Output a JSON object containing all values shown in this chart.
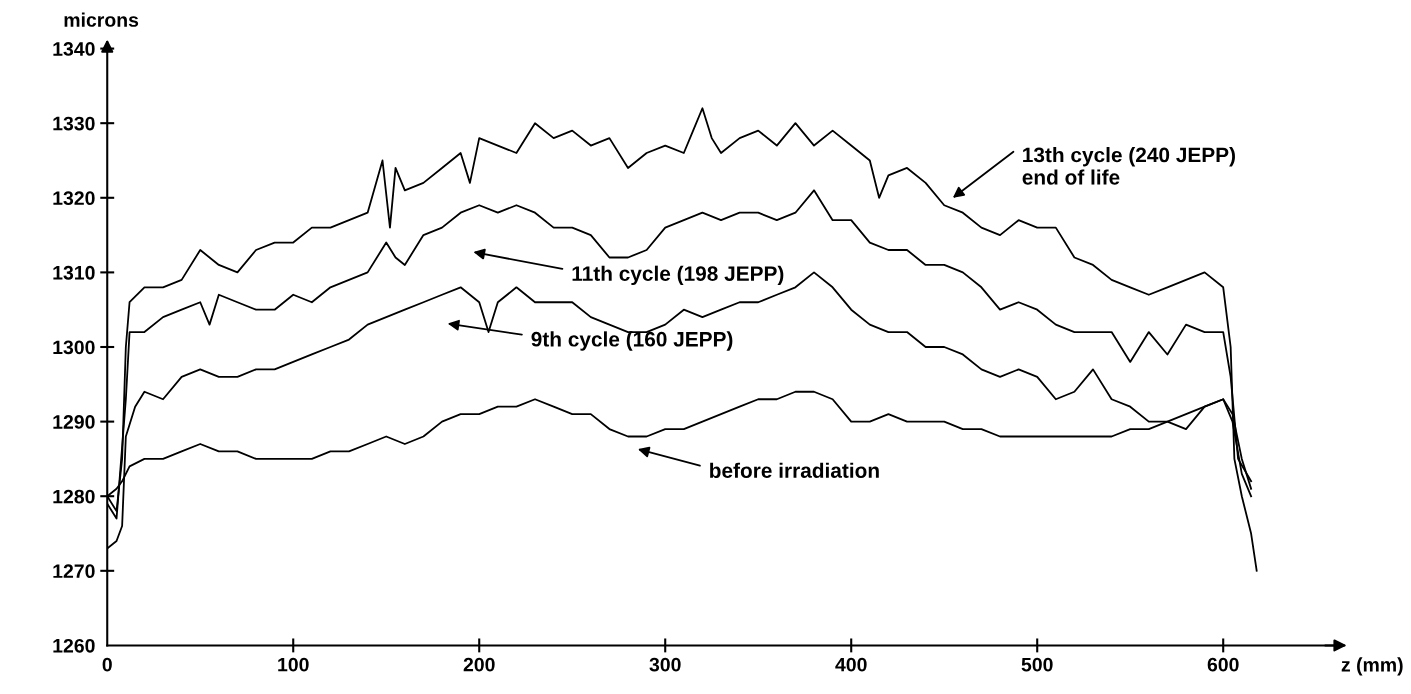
{
  "chart_data": {
    "type": "line",
    "xlabel": "z (mm)",
    "ylabel": "microns",
    "xlim": [
      0,
      660
    ],
    "ylim": [
      1260,
      1340
    ],
    "xticks": [
      0,
      100,
      200,
      300,
      400,
      500,
      600
    ],
    "yticks": [
      1260,
      1270,
      1280,
      1290,
      1300,
      1310,
      1320,
      1330,
      1340
    ],
    "grid": false,
    "legend": false,
    "marker": "none",
    "line_style": "solid",
    "series": [
      {
        "color": "#000000",
        "x": [
          0,
          5,
          8,
          10,
          12,
          20,
          30,
          40,
          50,
          60,
          70,
          80,
          90,
          100,
          110,
          120,
          130,
          140,
          148,
          152,
          155,
          160,
          170,
          180,
          190,
          195,
          200,
          210,
          220,
          230,
          240,
          250,
          260,
          270,
          280,
          290,
          300,
          310,
          315,
          320,
          325,
          330,
          340,
          350,
          360,
          370,
          380,
          390,
          400,
          410,
          415,
          420,
          430,
          440,
          450,
          460,
          470,
          480,
          490,
          500,
          510,
          520,
          530,
          540,
          550,
          560,
          570,
          580,
          590,
          600,
          604,
          606,
          610,
          615,
          618
        ],
        "values": [
          1280,
          1278,
          1285,
          1300,
          1306,
          1308,
          1308,
          1309,
          1313,
          1311,
          1310,
          1313,
          1314,
          1314,
          1316,
          1316,
          1317,
          1318,
          1325,
          1316,
          1324,
          1321,
          1322,
          1324,
          1326,
          1322,
          1328,
          1327,
          1326,
          1330,
          1328,
          1329,
          1327,
          1328,
          1324,
          1326,
          1327,
          1326,
          1329,
          1332,
          1328,
          1326,
          1328,
          1329,
          1327,
          1330,
          1327,
          1329,
          1327,
          1325,
          1320,
          1323,
          1324,
          1322,
          1319,
          1318,
          1316,
          1315,
          1317,
          1316,
          1316,
          1312,
          1311,
          1309,
          1308,
          1307,
          1308,
          1309,
          1310,
          1308,
          1300,
          1285,
          1280,
          1275,
          1270
        ]
      },
      {
        "color": "#000000",
        "x": [
          0,
          5,
          10,
          12,
          20,
          30,
          40,
          50,
          55,
          60,
          70,
          80,
          90,
          100,
          110,
          120,
          130,
          140,
          150,
          155,
          160,
          170,
          180,
          190,
          200,
          210,
          220,
          230,
          240,
          250,
          260,
          270,
          280,
          290,
          300,
          310,
          320,
          330,
          340,
          350,
          360,
          370,
          380,
          390,
          400,
          410,
          420,
          430,
          440,
          450,
          460,
          470,
          480,
          490,
          500,
          510,
          520,
          530,
          540,
          550,
          560,
          570,
          580,
          590,
          600,
          604,
          608,
          615
        ],
        "values": [
          1279,
          1277,
          1293,
          1302,
          1302,
          1304,
          1305,
          1306,
          1303,
          1307,
          1306,
          1305,
          1305,
          1307,
          1306,
          1308,
          1309,
          1310,
          1314,
          1312,
          1311,
          1315,
          1316,
          1318,
          1319,
          1318,
          1319,
          1318,
          1316,
          1316,
          1315,
          1312,
          1312,
          1313,
          1316,
          1317,
          1318,
          1317,
          1318,
          1318,
          1317,
          1318,
          1321,
          1317,
          1317,
          1314,
          1313,
          1313,
          1311,
          1311,
          1310,
          1308,
          1305,
          1306,
          1305,
          1303,
          1302,
          1302,
          1302,
          1298,
          1302,
          1299,
          1303,
          1302,
          1302,
          1296,
          1285,
          1282
        ]
      },
      {
        "color": "#000000",
        "x": [
          0,
          5,
          8,
          10,
          15,
          20,
          30,
          40,
          50,
          60,
          70,
          80,
          90,
          100,
          110,
          120,
          130,
          140,
          150,
          160,
          170,
          180,
          190,
          200,
          205,
          210,
          220,
          230,
          240,
          250,
          260,
          270,
          280,
          290,
          300,
          310,
          320,
          330,
          340,
          350,
          360,
          370,
          380,
          390,
          400,
          410,
          420,
          430,
          440,
          450,
          460,
          470,
          480,
          490,
          500,
          510,
          520,
          530,
          540,
          550,
          560,
          570,
          580,
          590,
          600,
          605,
          610,
          615
        ],
        "values": [
          1273,
          1274,
          1276,
          1288,
          1292,
          1294,
          1293,
          1296,
          1297,
          1296,
          1296,
          1297,
          1297,
          1298,
          1299,
          1300,
          1301,
          1303,
          1304,
          1305,
          1306,
          1307,
          1308,
          1306,
          1302,
          1306,
          1308,
          1306,
          1306,
          1306,
          1304,
          1303,
          1302,
          1302,
          1303,
          1305,
          1304,
          1305,
          1306,
          1306,
          1307,
          1308,
          1310,
          1308,
          1305,
          1303,
          1302,
          1302,
          1300,
          1300,
          1299,
          1297,
          1296,
          1297,
          1296,
          1293,
          1294,
          1297,
          1293,
          1292,
          1290,
          1290,
          1289,
          1292,
          1293,
          1290,
          1283,
          1280
        ]
      },
      {
        "color": "#000000",
        "x": [
          0,
          5,
          8,
          12,
          20,
          30,
          40,
          50,
          60,
          70,
          80,
          90,
          100,
          110,
          120,
          130,
          140,
          150,
          160,
          170,
          180,
          190,
          200,
          210,
          220,
          230,
          240,
          250,
          260,
          270,
          280,
          290,
          300,
          310,
          320,
          330,
          340,
          350,
          360,
          370,
          380,
          390,
          400,
          410,
          420,
          430,
          440,
          450,
          460,
          470,
          480,
          490,
          500,
          510,
          520,
          530,
          540,
          550,
          560,
          570,
          580,
          590,
          600,
          605,
          610,
          615
        ],
        "values": [
          1280,
          1281,
          1282,
          1284,
          1285,
          1285,
          1286,
          1287,
          1286,
          1286,
          1285,
          1285,
          1285,
          1285,
          1286,
          1286,
          1287,
          1288,
          1287,
          1288,
          1290,
          1291,
          1291,
          1292,
          1292,
          1293,
          1292,
          1291,
          1291,
          1289,
          1288,
          1288,
          1289,
          1289,
          1290,
          1291,
          1292,
          1293,
          1293,
          1294,
          1294,
          1293,
          1290,
          1290,
          1291,
          1290,
          1290,
          1290,
          1289,
          1289,
          1288,
          1288,
          1288,
          1288,
          1288,
          1288,
          1288,
          1289,
          1289,
          1290,
          1291,
          1292,
          1293,
          1291,
          1285,
          1281
        ]
      }
    ],
    "annotations": [
      "13th cycle (240 JEPP)\nend of life",
      "11th cycle (198 JEPP)",
      "9th cycle (160 JEPP)",
      "before irradiation"
    ]
  }
}
